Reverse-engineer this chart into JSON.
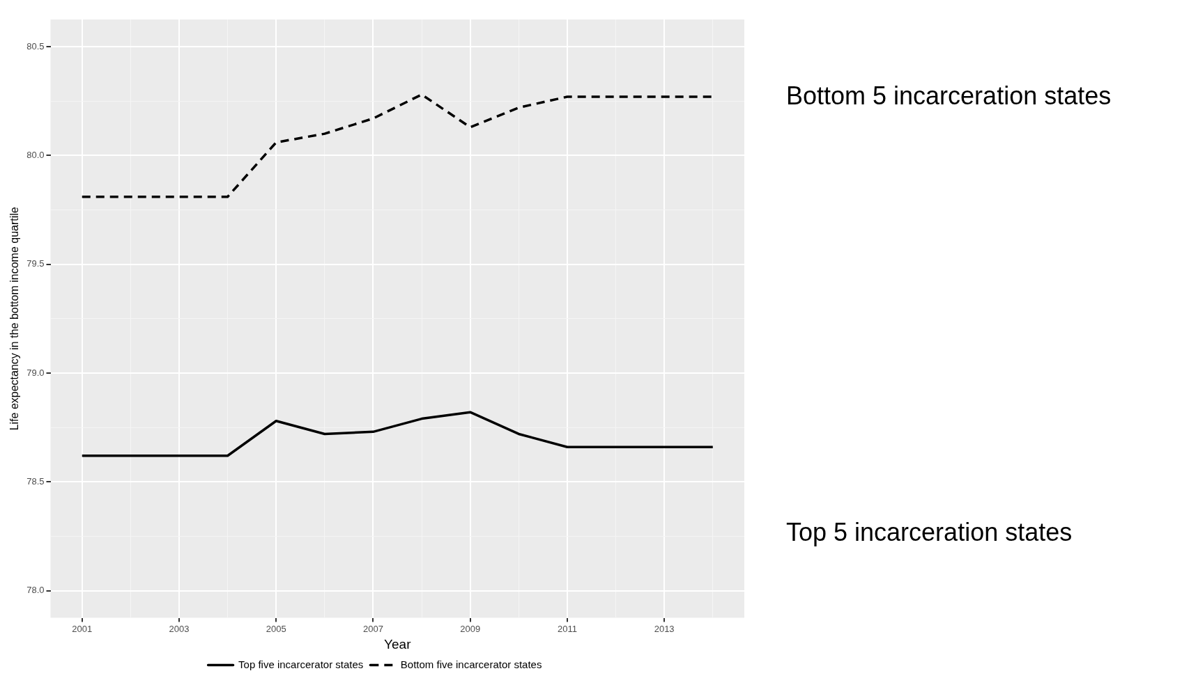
{
  "chart_data": {
    "type": "line",
    "xlabel": "Year",
    "ylabel": "Life expectancy in the bottom income quartile",
    "x": [
      2001,
      2002,
      2003,
      2004,
      2005,
      2006,
      2007,
      2008,
      2009,
      2010,
      2011,
      2012,
      2013,
      2014
    ],
    "series": [
      {
        "name": "Top five incarcerator states",
        "color": "#000000",
        "line_style": "solid",
        "values": [
          78.62,
          78.62,
          78.62,
          78.62,
          78.78,
          78.72,
          78.73,
          78.79,
          78.82,
          78.72,
          78.66,
          78.66,
          78.66,
          78.66
        ]
      },
      {
        "name": "Bottom five incarcerator states",
        "color": "#000000",
        "line_style": "dashed",
        "values": [
          79.81,
          79.81,
          79.81,
          79.81,
          80.06,
          80.1,
          80.17,
          80.28,
          80.13,
          80.22,
          80.27,
          80.27,
          80.27,
          80.27
        ]
      }
    ],
    "xlim": [
      2000.35,
      2014.65
    ],
    "xticks": [
      2001,
      {
        "value": 2002,
        "label": null
      },
      2003,
      {
        "value": 2004,
        "label": null
      },
      2005,
      {
        "value": 2006,
        "label": null
      },
      2007,
      {
        "value": 2008,
        "label": null
      },
      2009,
      {
        "value": 2010,
        "label": null
      },
      2011,
      {
        "value": 2012,
        "label": null
      },
      2013,
      {
        "value": 2014,
        "label": null
      }
    ],
    "ylim": [
      77.875,
      80.625
    ],
    "yticks": [
      {
        "value": 78,
        "label": "78.0"
      },
      {
        "value": 78.25,
        "label": null
      },
      {
        "value": 78.5,
        "label": "78.5"
      },
      {
        "value": 78.75,
        "label": null
      },
      {
        "value": 79,
        "label": "79.0"
      },
      {
        "value": 79.25,
        "label": null
      },
      {
        "value": 79.5,
        "label": "79.5"
      },
      {
        "value": 79.75,
        "label": null
      },
      {
        "value": 80,
        "label": "80.0"
      },
      {
        "value": 80.25,
        "label": null
      },
      {
        "value": 80.5,
        "label": "80.5"
      }
    ],
    "grid": true,
    "legend": "bottom",
    "marker": "none",
    "annotations": [
      "Bottom 5 incarceration states",
      "Top 5 incarceration states"
    ]
  }
}
